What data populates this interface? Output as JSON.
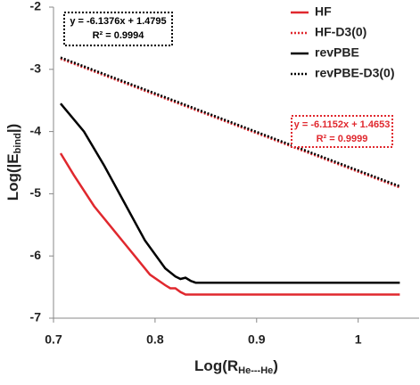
{
  "chart_data": {
    "type": "line",
    "x_label": {
      "main": "Log(R",
      "sub": "He---He",
      "end": ")"
    },
    "y_label": {
      "main": "Log(|E",
      "sub": "bind",
      "end": "|)"
    },
    "xlim": [
      0.7,
      1.06
    ],
    "ylim": [
      -7,
      -2
    ],
    "xticks": [
      0.7,
      0.8,
      0.9,
      1
    ],
    "yticks": [
      -7,
      -6,
      -5,
      -4,
      -3,
      -2
    ],
    "grid": false,
    "legend": "top-right",
    "series": [
      {
        "name": "HF",
        "color": "#e0282e",
        "style": "solid",
        "x": [
          0.707,
          0.72,
          0.74,
          0.76,
          0.77,
          0.78,
          0.795,
          0.81,
          0.815,
          0.82,
          0.825,
          0.83,
          0.84,
          0.9,
          1.0,
          1.041
        ],
        "values": [
          -4.35,
          -4.7,
          -5.2,
          -5.6,
          -5.8,
          -6.0,
          -6.3,
          -6.47,
          -6.52,
          -6.52,
          -6.58,
          -6.62,
          -6.62,
          -6.62,
          -6.62,
          -6.62
        ]
      },
      {
        "name": "HF-D3(0)",
        "color": "#e0282e",
        "style": "dotted",
        "x": [
          0.707,
          1.041
        ],
        "values": [
          -2.83,
          -4.9
        ]
      },
      {
        "name": "revPBE",
        "color": "#000000",
        "style": "solid",
        "x": [
          0.707,
          0.73,
          0.75,
          0.77,
          0.79,
          0.81,
          0.82,
          0.825,
          0.83,
          0.835,
          0.84,
          0.9,
          1.0,
          1.041
        ],
        "values": [
          -3.55,
          -4.0,
          -4.55,
          -5.15,
          -5.75,
          -6.2,
          -6.33,
          -6.37,
          -6.35,
          -6.4,
          -6.43,
          -6.43,
          -6.43,
          -6.43
        ]
      },
      {
        "name": "revPBE-D3(0)",
        "color": "#000000",
        "style": "dotted",
        "x": [
          0.707,
          1.041
        ],
        "values": [
          -2.81,
          -4.88
        ]
      }
    ],
    "annotations": [
      {
        "color": "#000000",
        "lines": [
          "y = -6.1376x + 1.4795",
          "R² = 0.9994"
        ]
      },
      {
        "color": "#e0282e",
        "lines": [
          "y = -6.1152x + 1.4653",
          "R² = 0.9999"
        ]
      }
    ]
  }
}
